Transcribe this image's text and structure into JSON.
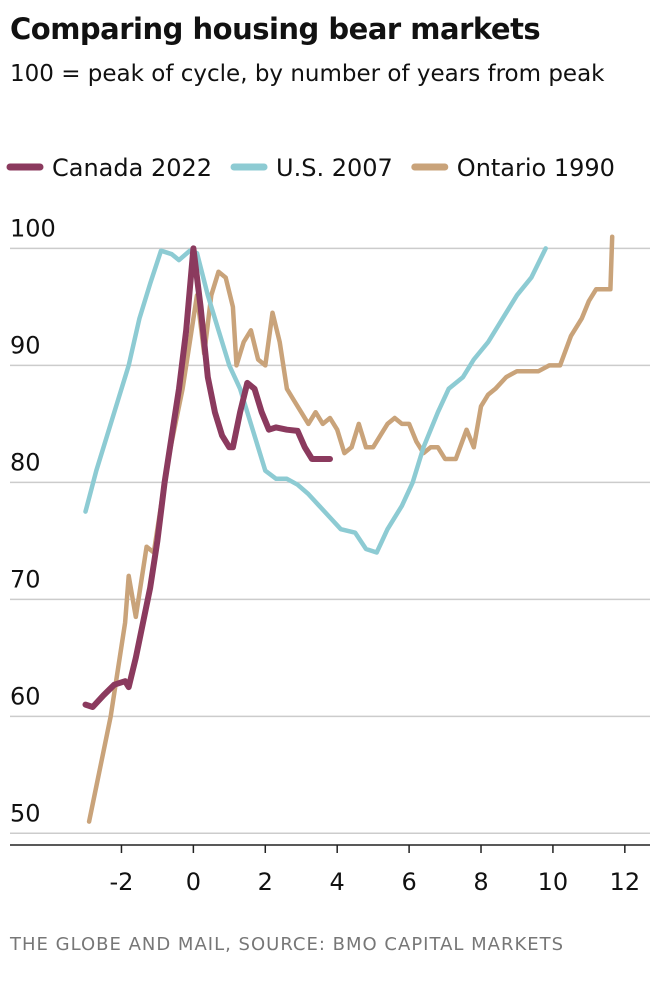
{
  "chart_data": {
    "type": "line",
    "title": "Comparing housing bear markets",
    "subtitle": "100 = peak of cycle, by number of years from peak",
    "source": "THE GLOBE AND MAIL, SOURCE: BMO CAPITAL MARKETS",
    "xlim": [
      -5.1,
      12.7
    ],
    "ylim": [
      49,
      102
    ],
    "xticks": [
      -2,
      0,
      2,
      4,
      6,
      8,
      10,
      12
    ],
    "yticks": [
      50,
      60,
      70,
      80,
      90,
      100
    ],
    "grid": true,
    "series": [
      {
        "name": "Canada 2022",
        "color": "#8b3a5e",
        "x": [
          -3,
          -2.8,
          -2.5,
          -2.2,
          -1.9,
          -1.8,
          -1.6,
          -1.4,
          -1.2,
          -1.0,
          -0.8,
          -0.6,
          -0.4,
          -0.2,
          0,
          0.2,
          0.4,
          0.6,
          0.8,
          1.0,
          1.1,
          1.3,
          1.5,
          1.7,
          1.9,
          2.1,
          2.3,
          2.6,
          2.9,
          3.1,
          3.3,
          3.5,
          3.8
        ],
        "values": [
          61,
          60.8,
          61.8,
          62.7,
          63,
          62.5,
          65,
          68,
          71,
          75,
          80,
          84,
          88,
          93,
          100,
          95,
          89,
          86,
          84,
          83,
          83,
          86,
          88.5,
          88,
          86,
          84.5,
          84.7,
          84.5,
          84.4,
          83,
          82,
          82,
          82
        ]
      },
      {
        "name": "U.S. 2007",
        "color": "#8dcbd3",
        "x": [
          -3,
          -2.7,
          -2.4,
          -2.1,
          -1.8,
          -1.5,
          -1.2,
          -0.9,
          -0.6,
          -0.4,
          -0.1,
          0.1,
          0.4,
          0.7,
          1.0,
          1.3,
          1.6,
          1.8,
          2.0,
          2.3,
          2.6,
          2.9,
          3.2,
          3.5,
          3.8,
          4.1,
          4.5,
          4.8,
          5.1,
          5.4,
          5.8,
          6.1,
          6.4,
          6.8,
          7.1,
          7.5,
          7.8,
          8.2,
          8.6,
          9.0,
          9.4,
          9.8
        ],
        "values": [
          77.5,
          81,
          84,
          87,
          90,
          94,
          97,
          99.8,
          99.5,
          99,
          99.8,
          99.6,
          96,
          93,
          90,
          88,
          85,
          83,
          81,
          80.3,
          80.3,
          79.8,
          79,
          78,
          77,
          76,
          75.7,
          74.3,
          74,
          76,
          78,
          80,
          83,
          86,
          88,
          89,
          90.5,
          92,
          94,
          96,
          97.5,
          100
        ]
      },
      {
        "name": "Ontario 1990",
        "color": "#c9a37a",
        "x": [
          -2.9,
          -2.7,
          -2.5,
          -2.3,
          -2.1,
          -1.9,
          -1.8,
          -1.6,
          -1.5,
          -1.3,
          -1.1,
          -0.9,
          -0.7,
          -0.5,
          -0.3,
          -0.1,
          0.1,
          0.3,
          0.5,
          0.7,
          0.9,
          1.1,
          1.2,
          1.4,
          1.6,
          1.8,
          2.0,
          2.2,
          2.4,
          2.6,
          2.8,
          3.0,
          3.2,
          3.4,
          3.6,
          3.8,
          4.0,
          4.2,
          4.4,
          4.6,
          4.8,
          5.0,
          5.2,
          5.4,
          5.6,
          5.8,
          6.0,
          6.2,
          6.4,
          6.6,
          6.8,
          7.0,
          7.3,
          7.6,
          7.8,
          8.0,
          8.2,
          8.4,
          8.7,
          9.0,
          9.3,
          9.6,
          9.9,
          10.2,
          10.5,
          10.8,
          11.0,
          11.2,
          11.4,
          11.6,
          11.65
        ],
        "values": [
          51,
          54,
          57,
          60,
          64,
          68,
          72,
          68.5,
          70.5,
          74.5,
          74,
          78,
          82,
          85,
          88,
          92,
          96,
          91,
          96,
          98,
          97.5,
          95,
          90,
          92,
          93,
          90.5,
          90,
          94.5,
          92,
          88,
          87,
          86,
          85,
          86,
          85,
          85.5,
          84.5,
          82.5,
          83,
          85,
          83,
          83,
          84,
          85,
          85.5,
          85,
          85,
          83.5,
          82.5,
          83,
          83,
          82,
          82,
          84.5,
          83,
          86.5,
          87.5,
          88,
          89,
          89.5,
          89.5,
          89.5,
          90,
          90,
          92.5,
          94,
          95.5,
          96.5,
          96.5,
          96.5,
          101
        ]
      }
    ]
  }
}
